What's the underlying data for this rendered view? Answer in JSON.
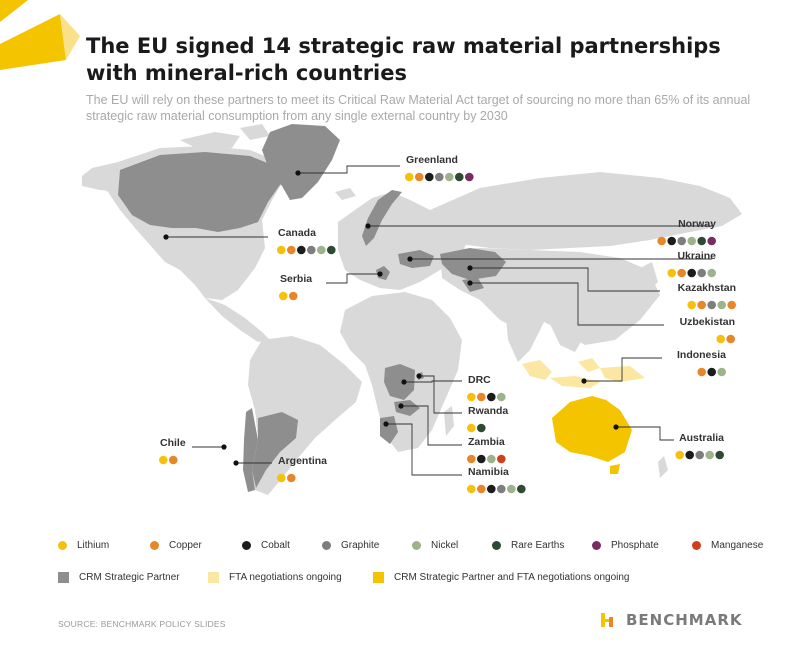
{
  "title": "The EU signed 14 strategic raw material partnerships with mineral-rich countries",
  "subtitle": "The EU will rely on these partners to meet its Critical Raw Material Act target of sourcing no more than 65% of its annual strategic raw material consumption from any single external country by 2030",
  "colors": {
    "accent": "#f5c400",
    "lithium": "#f5c10e",
    "copper": "#e8862a",
    "cobalt": "#1c1c1c",
    "graphite": "#7e7e7e",
    "nickel": "#9cb38c",
    "rare_earths": "#2e4a32",
    "phosphate": "#7b2b63",
    "manganese": "#cf3f1c",
    "land": "#d9d9d9",
    "crm_partner": "#8e8e8e",
    "fta_ongoing": "#fbe7a1",
    "crm_and_fta": "#f5c400"
  },
  "countries": [
    {
      "name": "Greenland",
      "minerals": [
        "lithium",
        "copper",
        "cobalt",
        "graphite",
        "nickel",
        "rare_earths",
        "phosphate"
      ]
    },
    {
      "name": "Canada",
      "minerals": [
        "lithium",
        "copper",
        "cobalt",
        "graphite",
        "nickel",
        "rare_earths"
      ]
    },
    {
      "name": "Norway",
      "minerals": [
        "copper",
        "cobalt",
        "graphite",
        "nickel",
        "rare_earths",
        "phosphate"
      ]
    },
    {
      "name": "Ukraine",
      "minerals": [
        "lithium",
        "copper",
        "cobalt",
        "graphite",
        "nickel"
      ]
    },
    {
      "name": "Serbia",
      "minerals": [
        "lithium",
        "copper"
      ]
    },
    {
      "name": "Kazakhstan",
      "minerals": [
        "lithium",
        "copper",
        "graphite",
        "nickel",
        "copper"
      ]
    },
    {
      "name": "Uzbekistan",
      "minerals": [
        "lithium",
        "copper"
      ]
    },
    {
      "name": "Indonesia",
      "minerals": [
        "copper",
        "cobalt",
        "nickel"
      ]
    },
    {
      "name": "DRC",
      "minerals": [
        "lithium",
        "copper",
        "cobalt",
        "nickel"
      ]
    },
    {
      "name": "Rwanda",
      "minerals": [
        "lithium",
        "rare_earths"
      ]
    },
    {
      "name": "Zambia",
      "minerals": [
        "copper",
        "cobalt",
        "nickel",
        "manganese"
      ]
    },
    {
      "name": "Namibia",
      "minerals": [
        "lithium",
        "copper",
        "cobalt",
        "graphite",
        "nickel",
        "rare_earths"
      ]
    },
    {
      "name": "Australia",
      "minerals": [
        "lithium",
        "cobalt",
        "graphite",
        "nickel",
        "rare_earths"
      ]
    },
    {
      "name": "Chile",
      "minerals": [
        "lithium",
        "copper"
      ]
    },
    {
      "name": "Argentina",
      "minerals": [
        "lithium",
        "copper"
      ]
    }
  ],
  "legend_minerals": [
    {
      "key": "lithium",
      "label": "Lithium"
    },
    {
      "key": "copper",
      "label": "Copper"
    },
    {
      "key": "cobalt",
      "label": "Cobalt"
    },
    {
      "key": "graphite",
      "label": "Graphite"
    },
    {
      "key": "nickel",
      "label": "Nickel"
    },
    {
      "key": "rare_earths",
      "label": "Rare Earths"
    },
    {
      "key": "phosphate",
      "label": "Phosphate"
    },
    {
      "key": "manganese",
      "label": "Manganese"
    }
  ],
  "legend_status": [
    {
      "key": "crm_partner",
      "label": "CRM Strategic Partner"
    },
    {
      "key": "fta_ongoing",
      "label": "FTA negotiations ongoing"
    },
    {
      "key": "crm_and_fta",
      "label": "CRM Strategic Partner and FTA negotiations ongoing"
    }
  ],
  "source": "SOURCE: BENCHMARK POLICY SLIDES",
  "brand": "BENCHMARK"
}
